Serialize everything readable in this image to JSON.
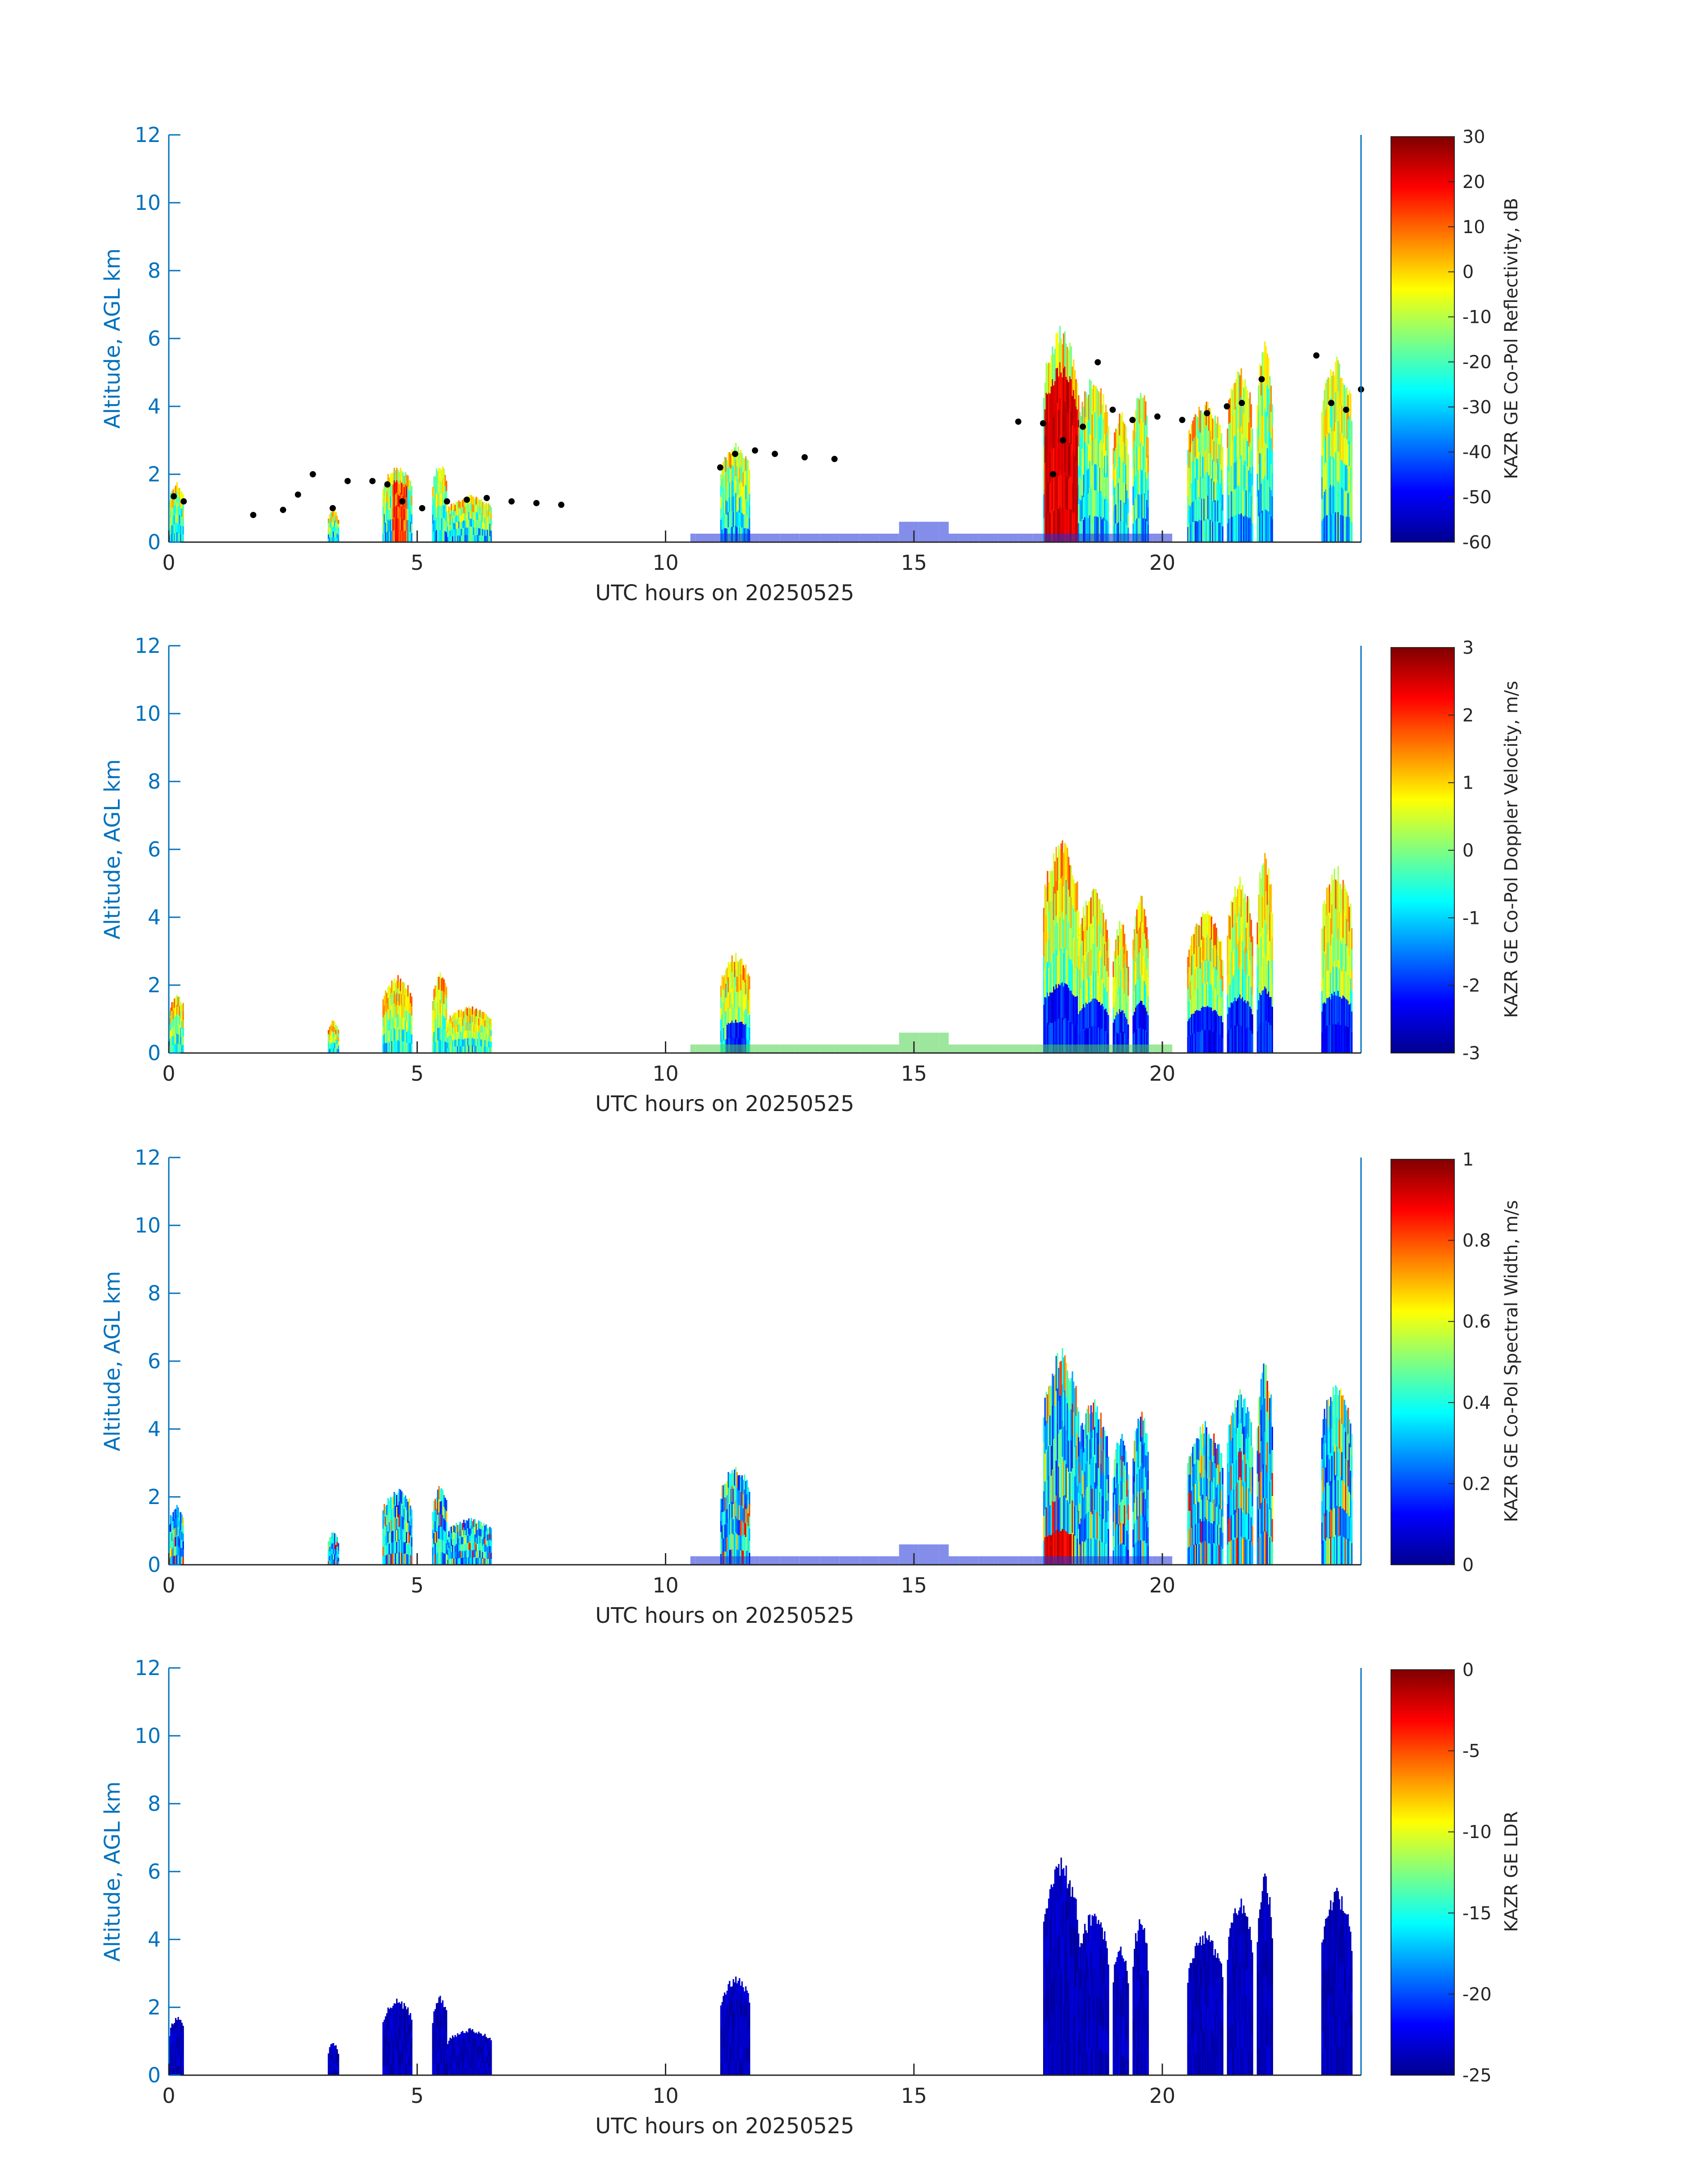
{
  "chart_data": [
    {
      "type": "heatmap",
      "xlabel": "UTC hours on 20250525",
      "ylabel": "Altitude, AGL km",
      "xlim": [
        0,
        24
      ],
      "ylim": [
        0,
        12
      ],
      "xticks": [
        "0",
        "5",
        "10",
        "15",
        "20"
      ],
      "yticks": [
        "0",
        "2",
        "4",
        "6",
        "8",
        "10",
        "12"
      ],
      "colorbar": {
        "label": "KAZR GE Co-Pol Reflectivity, dB",
        "min": -60,
        "max": 30,
        "ticks": [
          "30",
          "20",
          "10",
          "0",
          "-10",
          "-20",
          "-30",
          "-40",
          "-50",
          "-60"
        ]
      },
      "overlay": "cloud-base-points"
    },
    {
      "type": "heatmap",
      "xlabel": "UTC hours on 20250525",
      "ylabel": "Altitude, AGL km",
      "xlim": [
        0,
        24
      ],
      "ylim": [
        0,
        12
      ],
      "xticks": [
        "0",
        "5",
        "10",
        "15",
        "20"
      ],
      "yticks": [
        "0",
        "2",
        "4",
        "6",
        "8",
        "10",
        "12"
      ],
      "colorbar": {
        "label": "KAZR GE Co-Pol Doppler Velocity, m/s",
        "min": -3,
        "max": 3,
        "ticks": [
          "3",
          "2",
          "1",
          "0",
          "-1",
          "-2",
          "-3"
        ]
      }
    },
    {
      "type": "heatmap",
      "xlabel": "UTC hours on 20250525",
      "ylabel": "Altitude, AGL km",
      "xlim": [
        0,
        24
      ],
      "ylim": [
        0,
        12
      ],
      "xticks": [
        "0",
        "5",
        "10",
        "15",
        "20"
      ],
      "yticks": [
        "0",
        "2",
        "4",
        "6",
        "8",
        "10",
        "12"
      ],
      "colorbar": {
        "label": "KAZR GE Co-Pol Spectral Width, m/s",
        "min": 0,
        "max": 1,
        "ticks": [
          "1",
          "0.8",
          "0.6",
          "0.4",
          "0.2",
          "0"
        ]
      }
    },
    {
      "type": "heatmap",
      "xlabel": "UTC hours on 20250525",
      "ylabel": "Altitude, AGL km",
      "xlim": [
        0,
        24
      ],
      "ylim": [
        0,
        12
      ],
      "xticks": [
        "0",
        "5",
        "10",
        "15",
        "20"
      ],
      "yticks": [
        "0",
        "2",
        "4",
        "6",
        "8",
        "10",
        "12"
      ],
      "colorbar": {
        "label": "KAZR GE LDR",
        "min": -25,
        "max": 0,
        "ticks": [
          "0",
          "-5",
          "-10",
          "-15",
          "-20",
          "-25"
        ]
      }
    }
  ],
  "cloud_echoes": [
    {
      "x0": 0.0,
      "x1": 0.3,
      "top": 1.8
    },
    {
      "x0": 3.2,
      "x1": 3.4,
      "top": 1.0
    },
    {
      "x0": 4.3,
      "x1": 4.9,
      "top": 2.3
    },
    {
      "x0": 5.3,
      "x1": 5.6,
      "top": 2.4
    },
    {
      "x0": 5.6,
      "x1": 6.5,
      "top": 1.4
    },
    {
      "x0": 11.1,
      "x1": 11.7,
      "top": 3.0
    },
    {
      "x0": 17.6,
      "x1": 18.3,
      "top": 6.5
    },
    {
      "x0": 18.3,
      "x1": 18.9,
      "top": 5.0
    },
    {
      "x0": 19.0,
      "x1": 19.3,
      "top": 4.0
    },
    {
      "x0": 19.4,
      "x1": 19.7,
      "top": 4.8
    },
    {
      "x0": 20.5,
      "x1": 21.2,
      "top": 4.3
    },
    {
      "x0": 21.3,
      "x1": 21.8,
      "top": 5.3
    },
    {
      "x0": 21.9,
      "x1": 22.2,
      "top": 6.1
    },
    {
      "x0": 23.2,
      "x1": 23.8,
      "top": 5.6
    }
  ],
  "cloud_base_points": [
    [
      0.1,
      1.35
    ],
    [
      0.3,
      1.2
    ],
    [
      1.7,
      0.8
    ],
    [
      2.3,
      0.95
    ],
    [
      2.6,
      1.4
    ],
    [
      2.9,
      2.0
    ],
    [
      3.3,
      1.0
    ],
    [
      3.6,
      1.8
    ],
    [
      4.1,
      1.8
    ],
    [
      4.4,
      1.7
    ],
    [
      4.7,
      1.2
    ],
    [
      5.1,
      1.0
    ],
    [
      5.6,
      1.2
    ],
    [
      6.0,
      1.25
    ],
    [
      6.4,
      1.3
    ],
    [
      6.9,
      1.2
    ],
    [
      7.4,
      1.15
    ],
    [
      7.9,
      1.1
    ],
    [
      11.1,
      2.2
    ],
    [
      11.4,
      2.6
    ],
    [
      11.8,
      2.7
    ],
    [
      12.2,
      2.6
    ],
    [
      12.8,
      2.5
    ],
    [
      13.4,
      2.45
    ],
    [
      17.1,
      3.55
    ],
    [
      17.6,
      3.5
    ],
    [
      17.8,
      2.0
    ],
    [
      18.0,
      3.0
    ],
    [
      18.4,
      3.4
    ],
    [
      18.7,
      5.3
    ],
    [
      19.0,
      3.9
    ],
    [
      19.4,
      3.6
    ],
    [
      19.9,
      3.7
    ],
    [
      20.4,
      3.6
    ],
    [
      20.9,
      3.8
    ],
    [
      21.3,
      4.0
    ],
    [
      21.6,
      4.1
    ],
    [
      22.0,
      4.8
    ],
    [
      23.1,
      5.5
    ],
    [
      23.4,
      4.1
    ],
    [
      23.7,
      3.9
    ],
    [
      24.0,
      4.5
    ]
  ]
}
